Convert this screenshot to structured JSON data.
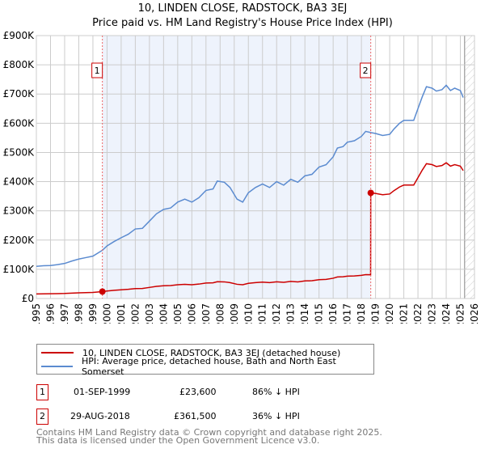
{
  "title": "10, LINDEN CLOSE, RADSTOCK, BA3 3EJ",
  "subtitle": "Price paid vs. HM Land Registry's House Price Index (HPI)",
  "legend": [
    {
      "label": "10, LINDEN CLOSE, RADSTOCK, BA3 3EJ (detached house)",
      "color": "#cc0000"
    },
    {
      "label": "HPI: Average price, detached house, Bath and North East Somerset",
      "color": "#5b8bd0"
    }
  ],
  "sales": [
    {
      "num": "1",
      "date": "01-SEP-1999",
      "price": "£23,600",
      "hpi_diff": "86% ↓ HPI",
      "t": 1999.67,
      "value": 23.6
    },
    {
      "num": "2",
      "date": "29-AUG-2018",
      "price": "£361,500",
      "hpi_diff": "36% ↓ HPI",
      "t": 2018.66,
      "value": 361.5
    }
  ],
  "footer": [
    "Contains HM Land Registry data © Crown copyright and database right 2025.",
    "This data is licensed under the Open Government Licence v3.0."
  ],
  "chart_data": {
    "type": "line",
    "xlim": [
      1995,
      2026
    ],
    "ylim": [
      0,
      900
    ],
    "yunit": "£K",
    "yticks": [
      "£0",
      "£100K",
      "£200K",
      "£300K",
      "£400K",
      "£500K",
      "£600K",
      "£700K",
      "£800K",
      "£900K"
    ],
    "xticks": [
      "1995",
      "1996",
      "1997",
      "1998",
      "1999",
      "2000",
      "2001",
      "2002",
      "2003",
      "2004",
      "2005",
      "2006",
      "2007",
      "2008",
      "2009",
      "2010",
      "2011",
      "2012",
      "2013",
      "2014",
      "2015",
      "2016",
      "2017",
      "2018",
      "2019",
      "2020",
      "2021",
      "2022",
      "2023",
      "2024",
      "2025",
      "2026"
    ],
    "grid": true,
    "shaded_range": [
      1999.67,
      2018.66
    ],
    "future_hatch_from": 2025.3,
    "series": [
      {
        "name": "HPI",
        "x": [
          1995,
          1995.5,
          1996,
          1996.5,
          1997,
          1997.5,
          1998,
          1998.5,
          1999,
          1999.67,
          2000,
          2000.5,
          2001,
          2001.5,
          2002,
          2002.5,
          2003,
          2003.5,
          2004,
          2004.5,
          2005,
          2005.5,
          2006,
          2006.5,
          2007,
          2007.5,
          2007.8,
          2008.3,
          2008.7,
          2009.2,
          2009.6,
          2010,
          2010.5,
          2011,
          2011.5,
          2012,
          2012.5,
          2013,
          2013.5,
          2014,
          2014.5,
          2015,
          2015.5,
          2016,
          2016.3,
          2016.7,
          2017,
          2017.5,
          2018,
          2018.3,
          2018.66,
          2019,
          2019.5,
          2020,
          2020.3,
          2020.7,
          2021,
          2021.7,
          2022,
          2022.3,
          2022.6,
          2023,
          2023.3,
          2023.7,
          2024,
          2024.3,
          2024.6,
          2025,
          2025.2
        ],
        "y": [
          110,
          112,
          113,
          116,
          120,
          128,
          135,
          140,
          145,
          165,
          180,
          195,
          208,
          220,
          238,
          240,
          265,
          290,
          305,
          310,
          330,
          340,
          330,
          345,
          370,
          375,
          402,
          398,
          380,
          340,
          330,
          362,
          380,
          392,
          380,
          400,
          388,
          408,
          398,
          420,
          425,
          450,
          458,
          485,
          515,
          520,
          535,
          540,
          555,
          572,
          568,
          565,
          558,
          562,
          580,
          600,
          610,
          610,
          650,
          690,
          725,
          720,
          710,
          715,
          730,
          712,
          720,
          712,
          688
        ]
      }
    ]
  }
}
